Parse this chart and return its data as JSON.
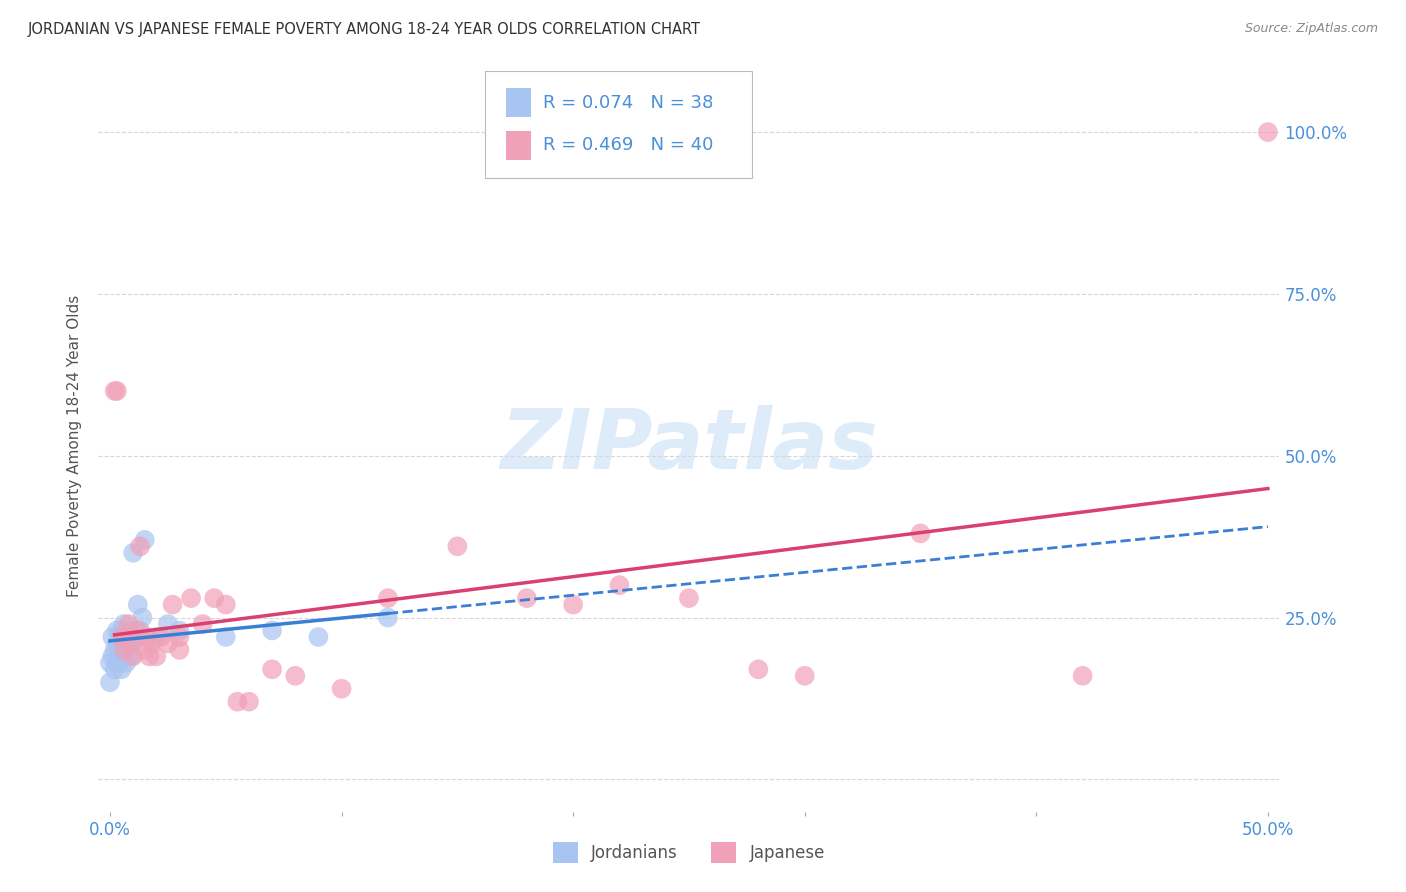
{
  "title": "JORDANIAN VS JAPANESE FEMALE POVERTY AMONG 18-24 YEAR OLDS CORRELATION CHART",
  "source": "Source: ZipAtlas.com",
  "ylabel": "Female Poverty Among 18-24 Year Olds",
  "xlim": [
    -0.005,
    0.505
  ],
  "ylim": [
    -0.05,
    1.08
  ],
  "xlabel_ticks": [
    0.0,
    0.1,
    0.2,
    0.3,
    0.4,
    0.5
  ],
  "xlabel_labels": [
    "0.0%",
    "",
    "",
    "",
    "",
    "50.0%"
  ],
  "ylabel_ticks_right": [
    0.0,
    0.25,
    0.5,
    0.75,
    1.0
  ],
  "ylabel_labels_right": [
    "",
    "25.0%",
    "50.0%",
    "75.0%",
    "100.0%"
  ],
  "legend_R1": "R = 0.074",
  "legend_N1": "N = 38",
  "legend_R2": "R = 0.469",
  "legend_N2": "N = 40",
  "legend_label1": "Jordanians",
  "legend_label2": "Japanese",
  "jordan_color": "#a8c4f0",
  "japan_color": "#f0a0b8",
  "jordan_line_color": "#3a7fd5",
  "japan_line_color": "#d84070",
  "watermark_color": "#c8dff5",
  "background_color": "#ffffff",
  "grid_color": "#cccccc",
  "title_color": "#333333",
  "axis_label_color": "#555555",
  "tick_color_blue": "#4a90d9",
  "source_color": "#888888",
  "jordanians_x": [
    0.0,
    0.0,
    0.001,
    0.001,
    0.002,
    0.002,
    0.003,
    0.003,
    0.003,
    0.004,
    0.004,
    0.005,
    0.005,
    0.005,
    0.006,
    0.006,
    0.006,
    0.007,
    0.007,
    0.007,
    0.008,
    0.008,
    0.009,
    0.009,
    0.01,
    0.01,
    0.011,
    0.012,
    0.013,
    0.014,
    0.015,
    0.02,
    0.025,
    0.03,
    0.05,
    0.07,
    0.09,
    0.12
  ],
  "jordanians_y": [
    0.18,
    0.15,
    0.22,
    0.19,
    0.2,
    0.17,
    0.23,
    0.21,
    0.18,
    0.22,
    0.19,
    0.2,
    0.23,
    0.17,
    0.21,
    0.24,
    0.19,
    0.22,
    0.2,
    0.18,
    0.23,
    0.21,
    0.22,
    0.19,
    0.35,
    0.21,
    0.22,
    0.27,
    0.23,
    0.25,
    0.37,
    0.22,
    0.24,
    0.23,
    0.22,
    0.23,
    0.22,
    0.25
  ],
  "japanese_x": [
    0.002,
    0.003,
    0.005,
    0.006,
    0.007,
    0.008,
    0.009,
    0.01,
    0.012,
    0.013,
    0.015,
    0.016,
    0.017,
    0.018,
    0.02,
    0.022,
    0.025,
    0.027,
    0.03,
    0.03,
    0.035,
    0.04,
    0.045,
    0.05,
    0.055,
    0.06,
    0.07,
    0.08,
    0.1,
    0.12,
    0.15,
    0.18,
    0.2,
    0.22,
    0.25,
    0.28,
    0.3,
    0.35,
    0.42,
    0.5
  ],
  "japanese_y": [
    0.6,
    0.6,
    0.22,
    0.2,
    0.22,
    0.24,
    0.21,
    0.19,
    0.23,
    0.36,
    0.2,
    0.22,
    0.19,
    0.21,
    0.19,
    0.22,
    0.21,
    0.27,
    0.2,
    0.22,
    0.28,
    0.24,
    0.28,
    0.27,
    0.12,
    0.12,
    0.17,
    0.16,
    0.14,
    0.28,
    0.36,
    0.28,
    0.27,
    0.3,
    0.28,
    0.17,
    0.16,
    0.38,
    0.16,
    1.0
  ]
}
